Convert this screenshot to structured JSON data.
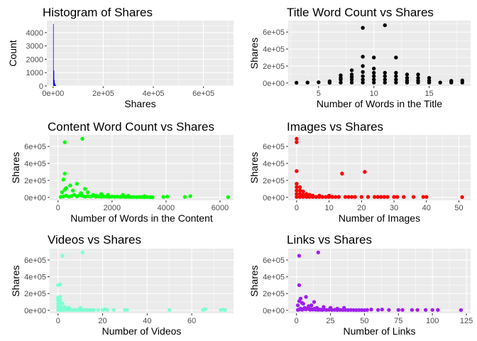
{
  "chart_data": [
    {
      "type": "bar",
      "title": "Histogram of Shares",
      "xlabel": "Shares",
      "ylabel": "Count",
      "color": "#0000ff",
      "xlim": [
        -25000,
        720000
      ],
      "ylim": [
        0,
        4900
      ],
      "xticks": [
        0,
        200000,
        400000,
        600000
      ],
      "xtick_labels": [
        "0e+00",
        "2e+05",
        "4e+05",
        "6e+05"
      ],
      "yticks": [
        0,
        1000,
        2000,
        3000,
        4000
      ],
      "ytick_labels": [
        "0",
        "1000",
        "2000",
        "3000",
        "4000"
      ],
      "bins": [
        {
          "x0": 0,
          "x1": 2000,
          "count": 4650
        },
        {
          "x0": 2000,
          "x1": 4000,
          "count": 1150
        },
        {
          "x0": 4000,
          "x1": 6000,
          "count": 450
        },
        {
          "x0": 6000,
          "x1": 8000,
          "count": 200
        },
        {
          "x0": 8000,
          "x1": 10000,
          "count": 90
        },
        {
          "x0": 10000,
          "x1": 12000,
          "count": 40
        }
      ]
    },
    {
      "type": "scatter",
      "title": "Title Word Count vs Shares",
      "xlabel": "Number of Words in the Title",
      "ylabel": "Shares",
      "color": "#000000",
      "xlim": [
        2.25,
        18.75
      ],
      "ylim": [
        -35000,
        735000
      ],
      "xticks": [
        5,
        10,
        15
      ],
      "xtick_labels": [
        "5",
        "10",
        "15"
      ],
      "yticks": [
        0,
        200000,
        400000,
        600000
      ],
      "ytick_labels": [
        "0e+00",
        "2e+05",
        "4e+05",
        "6e+05"
      ],
      "points": [
        [
          3,
          3000
        ],
        [
          4,
          5000
        ],
        [
          5,
          8000
        ],
        [
          6,
          3000
        ],
        [
          6,
          20000
        ],
        [
          7,
          5000
        ],
        [
          7,
          40000
        ],
        [
          7,
          60000
        ],
        [
          7,
          90000
        ],
        [
          8,
          5000
        ],
        [
          8,
          40000
        ],
        [
          8,
          70000
        ],
        [
          8,
          100000
        ],
        [
          8,
          150000
        ],
        [
          9,
          5000
        ],
        [
          9,
          40000
        ],
        [
          9,
          80000
        ],
        [
          9,
          130000
        ],
        [
          9,
          200000
        ],
        [
          9,
          310000
        ],
        [
          9,
          650000
        ],
        [
          10,
          5000
        ],
        [
          10,
          40000
        ],
        [
          10,
          80000
        ],
        [
          10,
          120000
        ],
        [
          10,
          170000
        ],
        [
          10,
          300000
        ],
        [
          11,
          5000
        ],
        [
          11,
          40000
        ],
        [
          11,
          80000
        ],
        [
          11,
          120000
        ],
        [
          11,
          680000
        ],
        [
          12,
          5000
        ],
        [
          12,
          40000
        ],
        [
          12,
          80000
        ],
        [
          12,
          120000
        ],
        [
          12,
          300000
        ],
        [
          13,
          5000
        ],
        [
          13,
          30000
        ],
        [
          13,
          60000
        ],
        [
          13,
          100000
        ],
        [
          14,
          5000
        ],
        [
          14,
          30000
        ],
        [
          14,
          60000
        ],
        [
          14,
          100000
        ],
        [
          15,
          5000
        ],
        [
          15,
          30000
        ],
        [
          15,
          60000
        ],
        [
          16,
          5000
        ],
        [
          17,
          5000
        ],
        [
          17,
          25000
        ],
        [
          18,
          5000
        ],
        [
          18,
          30000
        ]
      ]
    },
    {
      "type": "scatter",
      "title": "Content Word Count vs Shares",
      "xlabel": "Number of Words in the Content",
      "ylabel": "Shares",
      "color": "#00ff00",
      "xlim": [
        -310,
        6500
      ],
      "ylim": [
        -35000,
        735000
      ],
      "xticks": [
        0,
        2000,
        4000,
        6000
      ],
      "xtick_labels": [
        "0",
        "2000",
        "4000",
        "6000"
      ],
      "yticks": [
        0,
        200000,
        400000,
        600000
      ],
      "ytick_labels": [
        "0e+00",
        "2e+05",
        "4e+05",
        "6e+05"
      ],
      "points": [
        [
          100,
          5000
        ],
        [
          200,
          10000
        ],
        [
          300,
          20000
        ],
        [
          400,
          8000
        ],
        [
          500,
          15000
        ],
        [
          600,
          30000
        ],
        [
          700,
          12000
        ],
        [
          800,
          25000
        ],
        [
          900,
          18000
        ],
        [
          1000,
          8000
        ],
        [
          1100,
          15000
        ],
        [
          1200,
          10000
        ],
        [
          1300,
          20000
        ],
        [
          1400,
          8000
        ],
        [
          1500,
          12000
        ],
        [
          1600,
          6000
        ],
        [
          1700,
          10000
        ],
        [
          1800,
          8000
        ],
        [
          1900,
          5000
        ],
        [
          2000,
          10000
        ],
        [
          2100,
          6000
        ],
        [
          2200,
          8000
        ],
        [
          2300,
          5000
        ],
        [
          2400,
          7000
        ],
        [
          2500,
          4000
        ],
        [
          2600,
          6000
        ],
        [
          2700,
          4000
        ],
        [
          2800,
          5000
        ],
        [
          2900,
          3000
        ],
        [
          3000,
          5000
        ],
        [
          3100,
          4000
        ],
        [
          3200,
          3000
        ],
        [
          3300,
          4000
        ],
        [
          3400,
          3000
        ],
        [
          3500,
          2000
        ],
        [
          150,
          60000
        ],
        [
          300,
          110000
        ],
        [
          450,
          140000
        ],
        [
          250,
          90000
        ],
        [
          550,
          80000
        ],
        [
          700,
          160000
        ],
        [
          850,
          50000
        ],
        [
          1100,
          60000
        ],
        [
          1000,
          100000
        ],
        [
          1300,
          30000
        ],
        [
          1600,
          40000
        ],
        [
          1850,
          30000
        ],
        [
          200,
          210000
        ],
        [
          250,
          280000
        ],
        [
          250,
          650000
        ],
        [
          900,
          690000
        ],
        [
          1400,
          20000
        ],
        [
          2400,
          30000
        ],
        [
          2600,
          20000
        ],
        [
          3200,
          15000
        ],
        [
          3900,
          5000
        ],
        [
          4050,
          10000
        ],
        [
          4700,
          5000
        ],
        [
          4900,
          15000
        ],
        [
          6300,
          3000
        ]
      ]
    },
    {
      "type": "scatter",
      "title": "Images vs Shares",
      "xlabel": "Number of Images",
      "ylabel": "Shares",
      "color": "#ff0000",
      "xlim": [
        -2.6,
        53.6
      ],
      "ylim": [
        -35000,
        735000
      ],
      "xticks": [
        0,
        10,
        20,
        30,
        40,
        50
      ],
      "xtick_labels": [
        "0",
        "10",
        "20",
        "30",
        "40",
        "50"
      ],
      "yticks": [
        0,
        200000,
        400000,
        600000
      ],
      "ytick_labels": [
        "0e+00",
        "2e+05",
        "4e+05",
        "6e+05"
      ],
      "points": [
        [
          0,
          5000
        ],
        [
          0,
          40000
        ],
        [
          0,
          80000
        ],
        [
          0,
          120000
        ],
        [
          0,
          160000
        ],
        [
          0,
          310000
        ],
        [
          0,
          650000
        ],
        [
          0,
          690000
        ],
        [
          1,
          5000
        ],
        [
          1,
          40000
        ],
        [
          1,
          80000
        ],
        [
          1,
          120000
        ],
        [
          2,
          5000
        ],
        [
          2,
          30000
        ],
        [
          2,
          70000
        ],
        [
          3,
          5000
        ],
        [
          3,
          40000
        ],
        [
          4,
          5000
        ],
        [
          4,
          30000
        ],
        [
          5,
          5000
        ],
        [
          5,
          20000
        ],
        [
          6,
          5000
        ],
        [
          7,
          5000
        ],
        [
          7,
          20000
        ],
        [
          8,
          5000
        ],
        [
          9,
          5000
        ],
        [
          10,
          5000
        ],
        [
          10,
          20000
        ],
        [
          11,
          5000
        ],
        [
          12,
          5000
        ],
        [
          13,
          5000
        ],
        [
          14,
          280000
        ],
        [
          15,
          5000
        ],
        [
          16,
          5000
        ],
        [
          17,
          5000
        ],
        [
          18,
          5000
        ],
        [
          20,
          5000
        ],
        [
          21,
          300000
        ],
        [
          22,
          5000
        ],
        [
          24,
          5000
        ],
        [
          25,
          5000
        ],
        [
          26,
          5000
        ],
        [
          27,
          5000
        ],
        [
          28,
          5000
        ],
        [
          30,
          5000
        ],
        [
          31,
          5000
        ],
        [
          33,
          5000
        ],
        [
          36,
          5000
        ],
        [
          39,
          5000
        ],
        [
          40,
          5000
        ],
        [
          51,
          3000
        ]
      ]
    },
    {
      "type": "scatter",
      "title": "Videos vs Shares",
      "xlabel": "Number of Videos",
      "ylabel": "Shares",
      "color": "#7fffd4",
      "xlim": [
        -3.75,
        78.75
      ],
      "ylim": [
        -35000,
        735000
      ],
      "xticks": [
        0,
        20,
        40,
        60
      ],
      "xtick_labels": [
        "0",
        "20",
        "40",
        "60"
      ],
      "yticks": [
        0,
        200000,
        400000,
        600000
      ],
      "ytick_labels": [
        "0e+00",
        "2e+05",
        "4e+05",
        "6e+05"
      ],
      "points": [
        [
          0,
          5000
        ],
        [
          0,
          40000
        ],
        [
          0,
          80000
        ],
        [
          0,
          120000
        ],
        [
          0,
          150000
        ],
        [
          0,
          300000
        ],
        [
          1,
          5000
        ],
        [
          1,
          40000
        ],
        [
          1,
          90000
        ],
        [
          1,
          160000
        ],
        [
          1,
          310000
        ],
        [
          1,
          120000
        ],
        [
          2,
          5000
        ],
        [
          2,
          30000
        ],
        [
          2,
          80000
        ],
        [
          2,
          650000
        ],
        [
          3,
          5000
        ],
        [
          3,
          40000
        ],
        [
          4,
          5000
        ],
        [
          4,
          20000
        ],
        [
          5,
          5000
        ],
        [
          5,
          30000
        ],
        [
          6,
          5000
        ],
        [
          7,
          5000
        ],
        [
          8,
          5000
        ],
        [
          9,
          5000
        ],
        [
          10,
          5000
        ],
        [
          10,
          30000
        ],
        [
          11,
          5000
        ],
        [
          11,
          690000
        ],
        [
          12,
          5000
        ],
        [
          13,
          5000
        ],
        [
          14,
          5000
        ],
        [
          15,
          5000
        ],
        [
          16,
          5000
        ],
        [
          18,
          5000
        ],
        [
          20,
          5000
        ],
        [
          21,
          15000
        ],
        [
          22,
          5000
        ],
        [
          25,
          5000
        ],
        [
          30,
          5000
        ],
        [
          31,
          5000
        ],
        [
          50,
          5000
        ],
        [
          65,
          5000
        ],
        [
          66,
          15000
        ],
        [
          73,
          5000
        ],
        [
          74,
          10000
        ],
        [
          75,
          5000
        ]
      ]
    },
    {
      "type": "scatter",
      "title": "Links vs Shares",
      "xlabel": "Number of Links",
      "ylabel": "Shares",
      "color": "#a020f0",
      "xlim": [
        -6.1,
        128.1
      ],
      "ylim": [
        -35000,
        735000
      ],
      "xticks": [
        0,
        25,
        50,
        75,
        100,
        125
      ],
      "xtick_labels": [
        "0",
        "25",
        "50",
        "75",
        "100",
        "125"
      ],
      "yticks": [
        0,
        200000,
        400000,
        600000
      ],
      "ytick_labels": [
        "0e+00",
        "2e+05",
        "4e+05",
        "6e+05"
      ],
      "points": [
        [
          1,
          5000
        ],
        [
          2,
          10000
        ],
        [
          3,
          20000
        ],
        [
          4,
          8000
        ],
        [
          5,
          15000
        ],
        [
          6,
          30000
        ],
        [
          7,
          12000
        ],
        [
          8,
          25000
        ],
        [
          9,
          18000
        ],
        [
          10,
          8000
        ],
        [
          11,
          15000
        ],
        [
          12,
          10000
        ],
        [
          13,
          20000
        ],
        [
          14,
          8000
        ],
        [
          15,
          12000
        ],
        [
          16,
          6000
        ],
        [
          17,
          10000
        ],
        [
          18,
          8000
        ],
        [
          19,
          5000
        ],
        [
          20,
          10000
        ],
        [
          22,
          6000
        ],
        [
          24,
          8000
        ],
        [
          26,
          5000
        ],
        [
          28,
          7000
        ],
        [
          30,
          4000
        ],
        [
          32,
          6000
        ],
        [
          34,
          4000
        ],
        [
          36,
          5000
        ],
        [
          38,
          3000
        ],
        [
          40,
          5000
        ],
        [
          42,
          4000
        ],
        [
          44,
          3000
        ],
        [
          46,
          4000
        ],
        [
          48,
          3000
        ],
        [
          50,
          2000
        ],
        [
          1,
          60000
        ],
        [
          2,
          110000
        ],
        [
          3,
          140000
        ],
        [
          4,
          90000
        ],
        [
          5,
          80000
        ],
        [
          7,
          160000
        ],
        [
          9,
          50000
        ],
        [
          11,
          60000
        ],
        [
          13,
          100000
        ],
        [
          15,
          30000
        ],
        [
          20,
          40000
        ],
        [
          25,
          30000
        ],
        [
          30,
          20000
        ],
        [
          35,
          30000
        ],
        [
          2,
          300000
        ],
        [
          2,
          650000
        ],
        [
          16,
          690000
        ],
        [
          52,
          5000
        ],
        [
          55,
          10000
        ],
        [
          60,
          5000
        ],
        [
          63,
          10000
        ],
        [
          68,
          5000
        ],
        [
          75,
          5000
        ],
        [
          78,
          5000
        ],
        [
          85,
          5000
        ],
        [
          89,
          5000
        ],
        [
          95,
          5000
        ],
        [
          100,
          5000
        ],
        [
          104,
          5000
        ],
        [
          121,
          3000
        ]
      ]
    }
  ]
}
